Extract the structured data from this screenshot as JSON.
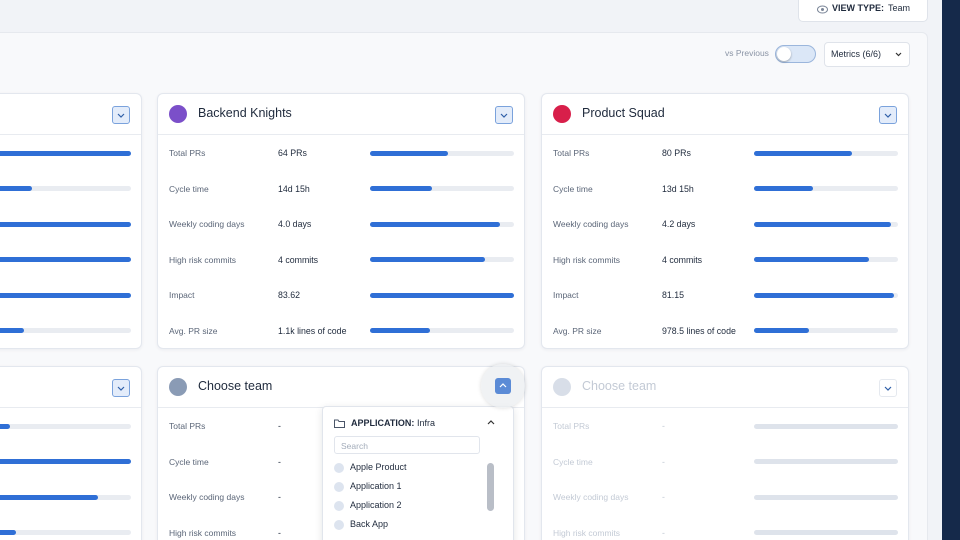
{
  "header": {
    "view_type_label": "VIEW TYPE:",
    "view_type": "Team"
  },
  "toolbar": {
    "compare": "vs Previous",
    "metrics": "Metrics (6/6)"
  },
  "cards": [
    {
      "rows": [
        {
          "bar": 1.0
        },
        {
          "bar": 0.31
        },
        {
          "bar": 1.0
        },
        {
          "bar": 1.0
        },
        {
          "bar": 1.0
        },
        {
          "bar": 0.26
        }
      ]
    },
    {
      "name": "Backend Knights",
      "color": "#7b4fc9",
      "rows": [
        {
          "label": "Total PRs",
          "value": "64 PRs",
          "bar": 0.54
        },
        {
          "label": "Cycle time",
          "value": "14d 15h",
          "bar": 0.43
        },
        {
          "label": "Weekly coding days",
          "value": "4.0 days",
          "bar": 0.9
        },
        {
          "label": "High risk commits",
          "value": "4 commits",
          "bar": 0.8
        },
        {
          "label": "Impact",
          "value": "83.62",
          "bar": 1.0
        },
        {
          "label": "Avg. PR size",
          "value": "1.1k lines of code",
          "bar": 0.42
        }
      ]
    },
    {
      "name": "Product Squad",
      "color": "#d81f4a",
      "rows": [
        {
          "label": "Total PRs",
          "value": "80 PRs",
          "bar": 0.68
        },
        {
          "label": "Cycle time",
          "value": "13d 15h",
          "bar": 0.41
        },
        {
          "label": "Weekly coding days",
          "value": "4.2 days",
          "bar": 0.95
        },
        {
          "label": "High risk commits",
          "value": "4 commits",
          "bar": 0.8
        },
        {
          "label": "Impact",
          "value": "81.15",
          "bar": 0.97
        },
        {
          "label": "Avg. PR size",
          "value": "978.5 lines of code",
          "bar": 0.38
        }
      ]
    },
    {
      "rows": [
        {
          "bar": 0.16
        },
        {
          "bar": 1.0
        },
        {
          "bar": 0.77
        },
        {
          "bar": 0.2
        }
      ]
    },
    {
      "name": "Choose team",
      "color": "#8a9bb5",
      "rows": [
        {
          "label": "Total PRs",
          "value": "-"
        },
        {
          "label": "Cycle time",
          "value": "-"
        },
        {
          "label": "Weekly coding days",
          "value": "-"
        },
        {
          "label": "High risk commits",
          "value": "-"
        }
      ]
    },
    {
      "name": "Choose team",
      "color": "#d8dee8",
      "rows": [
        {
          "label": "Total PRs",
          "value": "-"
        },
        {
          "label": "Cycle time",
          "value": "-"
        },
        {
          "label": "Weekly coding days",
          "value": "-"
        },
        {
          "label": "High risk commits",
          "value": "-"
        }
      ]
    }
  ],
  "dropdown": {
    "title_key": "APPLICATION:",
    "title_value": "Infra",
    "search_placeholder": "Search",
    "items": [
      "Apple Product",
      "Application 1",
      "Application 2",
      "Back App"
    ]
  }
}
